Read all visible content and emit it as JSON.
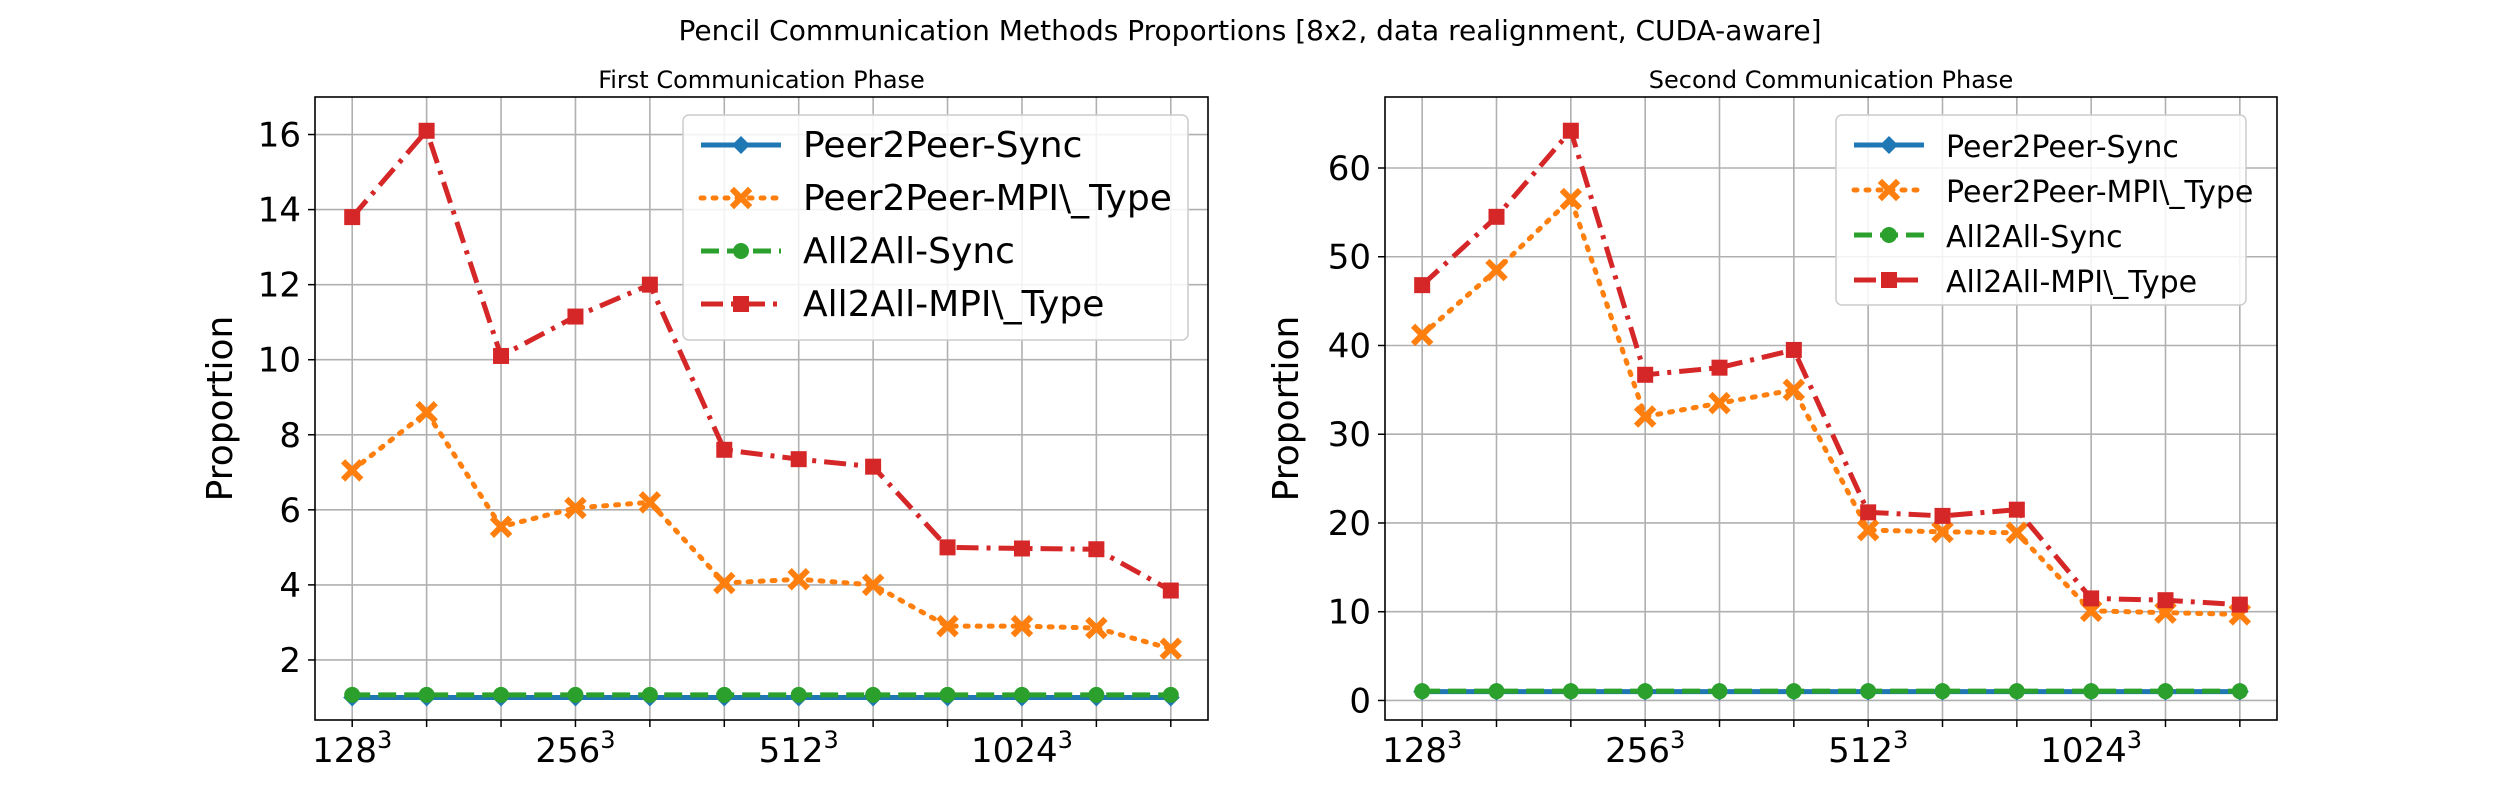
{
  "figure": {
    "suptitle": "Pencil Communication Methods Proportions [8x2, data realignment, CUDA-aware]"
  },
  "chart_data": [
    {
      "type": "line",
      "title": "First Communication Phase",
      "xlabel": "",
      "ylabel": "Proportion",
      "x": [
        0,
        1,
        2,
        3,
        4,
        5,
        6,
        7,
        8,
        9,
        10,
        11
      ],
      "xtick_positions": [
        0,
        3,
        6,
        9
      ],
      "xtick_labels": [
        {
          "base": "128",
          "exp": "3"
        },
        {
          "base": "256",
          "exp": "3"
        },
        {
          "base": "512",
          "exp": "3"
        },
        {
          "base": "1024",
          "exp": "3"
        }
      ],
      "ylim": [
        0.4,
        17.0
      ],
      "yticks": [
        2,
        4,
        6,
        8,
        10,
        12,
        14,
        16
      ],
      "grid": true,
      "legend_position": "top-right",
      "series": [
        {
          "name": "Peer2Peer-Sync",
          "color": "#1f77b4",
          "marker": "diamond",
          "linestyle": "solid",
          "values": [
            1,
            1,
            1,
            1,
            1,
            1,
            1,
            1,
            1,
            1,
            1,
            1
          ]
        },
        {
          "name": "Peer2Peer-MPI\\_Type",
          "color": "#ff7f0e",
          "marker": "x-filled",
          "linestyle": "dotted",
          "values": [
            7.05,
            8.6,
            5.55,
            6.05,
            6.2,
            4.05,
            4.15,
            4.0,
            2.9,
            2.9,
            2.85,
            2.3
          ]
        },
        {
          "name": "All2All-Sync",
          "color": "#2ca02c",
          "marker": "circle",
          "linestyle": "dashed",
          "values": [
            1.07,
            1.07,
            1.07,
            1.07,
            1.07,
            1.07,
            1.07,
            1.07,
            1.07,
            1.07,
            1.07,
            1.07
          ]
        },
        {
          "name": "All2All-MPI\\_Type",
          "color": "#d62728",
          "marker": "square",
          "linestyle": "dashdot",
          "values": [
            13.8,
            16.1,
            10.1,
            11.15,
            12.0,
            7.6,
            7.35,
            7.15,
            5.0,
            4.97,
            4.95,
            3.85
          ]
        }
      ]
    },
    {
      "type": "line",
      "title": "Second Communication Phase",
      "xlabel": "",
      "ylabel": "Proportion",
      "x": [
        0,
        1,
        2,
        3,
        4,
        5,
        6,
        7,
        8,
        9,
        10,
        11
      ],
      "xtick_positions": [
        0,
        3,
        6,
        9
      ],
      "xtick_labels": [
        {
          "base": "128",
          "exp": "3"
        },
        {
          "base": "256",
          "exp": "3"
        },
        {
          "base": "512",
          "exp": "3"
        },
        {
          "base": "1024",
          "exp": "3"
        }
      ],
      "ylim": [
        -2.2,
        68.0
      ],
      "yticks": [
        0,
        10,
        20,
        30,
        40,
        50,
        60
      ],
      "grid": true,
      "legend_position": "top-right",
      "series": [
        {
          "name": "Peer2Peer-Sync",
          "color": "#1f77b4",
          "marker": "diamond",
          "linestyle": "solid",
          "values": [
            1,
            1,
            1,
            1,
            1,
            1,
            1,
            1,
            1,
            1,
            1,
            1
          ]
        },
        {
          "name": "Peer2Peer-MPI\\_Type",
          "color": "#ff7f0e",
          "marker": "x-filled",
          "linestyle": "dotted",
          "values": [
            41.2,
            48.5,
            56.5,
            32.0,
            33.5,
            35.0,
            19.2,
            19.0,
            18.9,
            10.1,
            9.9,
            9.7
          ]
        },
        {
          "name": "All2All-Sync",
          "color": "#2ca02c",
          "marker": "circle",
          "linestyle": "dashed",
          "values": [
            1.05,
            1.05,
            1.05,
            1.05,
            1.05,
            1.05,
            1.05,
            1.05,
            1.05,
            1.05,
            1.05,
            1.05
          ]
        },
        {
          "name": "All2All-MPI\\_Type",
          "color": "#d62728",
          "marker": "square",
          "linestyle": "dashdot",
          "values": [
            46.8,
            54.5,
            64.2,
            36.7,
            37.5,
            39.5,
            21.2,
            20.8,
            21.5,
            11.5,
            11.3,
            10.8
          ]
        }
      ]
    }
  ]
}
